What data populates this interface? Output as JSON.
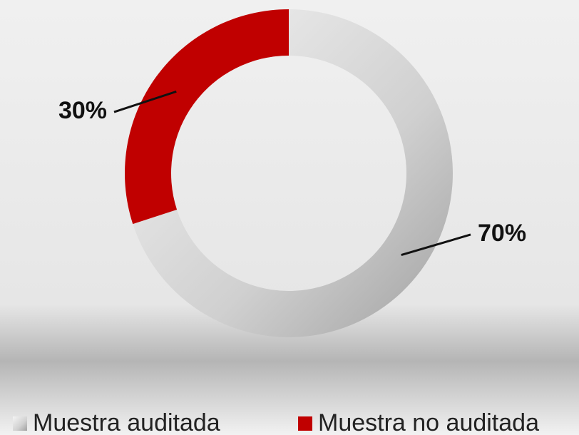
{
  "chart_data": {
    "type": "donut",
    "categories": [
      "Muestra auditada",
      "Muestra no auditada"
    ],
    "values": [
      70,
      30
    ],
    "value_labels": [
      "70%",
      "30%"
    ],
    "colors": [
      "#c8c8c8",
      "#c00000"
    ],
    "legend": "bottom"
  }
}
